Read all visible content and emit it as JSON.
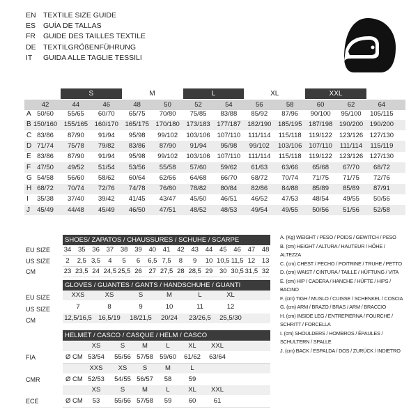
{
  "languages": [
    {
      "code": "EN",
      "title": "TEXTILE SIZE GUIDE"
    },
    {
      "code": "ES",
      "title": "GUÍA DE TALLAS"
    },
    {
      "code": "FR",
      "title": "GUIDE DES TAILLES TEXTILE"
    },
    {
      "code": "DE",
      "title": "TEXTILGRÖßENFÜHRUNG"
    },
    {
      "code": "IT",
      "title": "GUIDA ALLE TAGLIE TESSILI"
    }
  ],
  "size_table": {
    "groups": [
      "S",
      "M",
      "L",
      "XL",
      "XXL"
    ],
    "sizes": [
      "42",
      "44",
      "46",
      "48",
      "50",
      "52",
      "54",
      "56",
      "58",
      "60",
      "62",
      "64"
    ],
    "rows": [
      {
        "letter": "A",
        "values": [
          "50/60",
          "55/65",
          "60/70",
          "65/75",
          "70/80",
          "75/85",
          "83/88",
          "85/92",
          "87/96",
          "90/100",
          "95/100",
          "105/115"
        ]
      },
      {
        "letter": "B",
        "values": [
          "150/160",
          "155/165",
          "160/170",
          "165/175",
          "170/180",
          "173/183",
          "177/187",
          "182/190",
          "185/195",
          "187/198",
          "190/200",
          "190/200"
        ]
      },
      {
        "letter": "C",
        "values": [
          "83/86",
          "87/90",
          "91/94",
          "95/98",
          "99/102",
          "103/106",
          "107/110",
          "111/114",
          "115/118",
          "119/122",
          "123/126",
          "127/130"
        ]
      },
      {
        "letter": "D",
        "values": [
          "71/74",
          "75/78",
          "79/82",
          "83/86",
          "87/90",
          "91/94",
          "95/98",
          "99/102",
          "103/106",
          "107/110",
          "111/114",
          "115/119"
        ]
      },
      {
        "letter": "E",
        "values": [
          "83/86",
          "87/90",
          "91/94",
          "95/98",
          "99/102",
          "103/106",
          "107/110",
          "111/114",
          "115/118",
          "119/122",
          "123/126",
          "127/130"
        ]
      },
      {
        "letter": "F",
        "values": [
          "47/50",
          "49/52",
          "51/54",
          "53/56",
          "55/58",
          "57/60",
          "59/62",
          "61/63",
          "63/66",
          "65/68",
          "67/70",
          "68/72"
        ]
      },
      {
        "letter": "G",
        "values": [
          "54/58",
          "56/60",
          "58/62",
          "60/64",
          "62/66",
          "64/68",
          "66/70",
          "68/72",
          "70/74",
          "71/75",
          "71/75",
          "72/76"
        ]
      },
      {
        "letter": "H",
        "values": [
          "68/72",
          "70/74",
          "72/76",
          "74/78",
          "76/80",
          "78/82",
          "80/84",
          "82/86",
          "84/88",
          "85/89",
          "85/89",
          "87/91"
        ]
      },
      {
        "letter": "I",
        "values": [
          "35/38",
          "37/40",
          "39/42",
          "41/45",
          "43/47",
          "45/50",
          "46/51",
          "46/52",
          "47/53",
          "48/54",
          "49/55",
          "50/56"
        ]
      },
      {
        "letter": "J",
        "values": [
          "45/49",
          "44/48",
          "45/49",
          "46/50",
          "47/51",
          "48/52",
          "48/53",
          "49/54",
          "49/55",
          "50/56",
          "51/56",
          "52/58"
        ]
      }
    ]
  },
  "shoes": {
    "title": "SHOES/ ZAPATOS / CHAUSSURES / SCHUHE / SCARPE",
    "rows": [
      {
        "label": "EU SIZE",
        "values": [
          "34",
          "35",
          "36",
          "37",
          "38",
          "39",
          "40",
          "41",
          "42",
          "43",
          "44",
          "45",
          "46",
          "47",
          "48"
        ]
      },
      {
        "label": "US SIZE",
        "values": [
          "2",
          "2,5",
          "3,5",
          "4",
          "5",
          "6",
          "6,5",
          "7,5",
          "8",
          "9",
          "10",
          "10,5",
          "11,5",
          "12",
          "13"
        ]
      },
      {
        "label": "CM",
        "values": [
          "23",
          "23,5",
          "24",
          "24,5",
          "25,5",
          "26",
          "27",
          "27,5",
          "28",
          "28,5",
          "29",
          "30",
          "30,5",
          "31,5",
          "32"
        ]
      }
    ]
  },
  "gloves": {
    "title": "GLOVES / GUANTES / GANTS / HANDSCHUHE / GUANTI",
    "rows": [
      {
        "label": "EU SIZE",
        "values": [
          "XXS",
          "XS",
          "S",
          "M",
          "L",
          "XL"
        ]
      },
      {
        "label": "US SIZE",
        "values": [
          "7",
          "8",
          "9",
          "10",
          "11",
          "12"
        ]
      },
      {
        "label": "CM",
        "values": [
          "12,5/16,5",
          "16,5/19",
          "18/21,5",
          "20/24",
          "23/26,5",
          "25,5/30"
        ]
      }
    ]
  },
  "helmet": {
    "title": "HELMET / CASCO / CASQUE / HELM / CASCO",
    "standards": [
      {
        "label": "FIA",
        "unit": "Ø CM",
        "sizes": [
          "XS",
          "S",
          "M",
          "L",
          "XL",
          "XXL"
        ],
        "values": [
          "53/54",
          "55/56",
          "57/58",
          "59/60",
          "61/62",
          "63/64"
        ]
      },
      {
        "label": "CMR",
        "unit": "Ø CM",
        "sizes": [
          "XXS",
          "XS",
          "S",
          "M",
          "L"
        ],
        "values": [
          "52/53",
          "54/55",
          "56/57",
          "58",
          "59"
        ]
      },
      {
        "label": "ECE",
        "unit": "Ø CM",
        "sizes": [
          "XS",
          "S",
          "M",
          "L",
          "XL",
          "XXL"
        ],
        "values": [
          "53",
          "55/56",
          "57/58",
          "59",
          "60",
          "61"
        ]
      }
    ]
  },
  "legend": [
    "A. (Kg) WEIGHT / PESO / POIDS / GEWITCH / PESO",
    "B. (cm) HEIGHT / ALTURA / HAUTEUR / HÖHE / ALTEZZA",
    "C. (cm) CHEST / PECHO / POITRINE / TRUHE / PETTO",
    "D. (cm) WAIST / CINTURA / TAILLE / HÜFTUNG / VITA",
    "E. (cm) HIP / CADERA / HANCHE / HÜFTE / HIPS / BACINO",
    "F. (cm) TIGH / MUSLO / CUISSE / SCHENKEL / COSCIA",
    "G. (cm) ARM / BRAZO / BRAS / ARM / BRACCIO",
    "H. (cm) INSIDE LEG / ENTREPIERNA / FOURCHE / SCHRITT / FORCELLA",
    "I. (cm) SHOULDERS / HOMBROS / ÉPAULES / SCHULTERN / SPALLE",
    "J. (cm) BACK / ESPALDA / DOS / ZURÜCK / INDIETRO"
  ]
}
